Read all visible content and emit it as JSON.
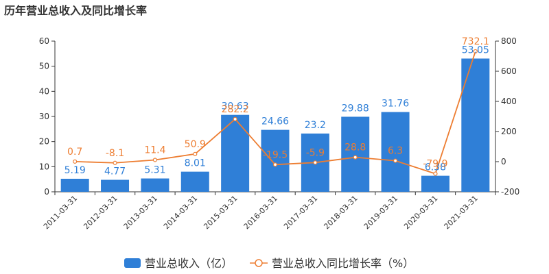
{
  "title": "历年营业总收入及同比增长率",
  "colors": {
    "bar": "#2f7fd7",
    "line": "#ed7d31",
    "axis": "#333333"
  },
  "chart_data": {
    "type": "bar",
    "categories": [
      "2011-03-31",
      "2012-03-31",
      "2013-03-31",
      "2014-03-31",
      "2015-03-31",
      "2016-03-31",
      "2017-03-31",
      "2018-03-31",
      "2019-03-31",
      "2020-03-31",
      "2021-03-31"
    ],
    "series": [
      {
        "name": "营业总收入（亿）",
        "type": "bar",
        "axis": "left",
        "values": [
          5.19,
          4.77,
          5.31,
          8.01,
          30.63,
          24.66,
          23.2,
          29.88,
          31.76,
          6.38,
          53.05
        ],
        "labels": [
          "5.19",
          "4.77",
          "5.31",
          "8.01",
          "30.63",
          "24.66",
          "23.2",
          "29.88",
          "31.76",
          "6.38",
          "53.05"
        ]
      },
      {
        "name": "营业总收入同比增长率（%）",
        "type": "line",
        "axis": "right",
        "values": [
          0.7,
          -8.1,
          11.4,
          50.9,
          282.2,
          -19.5,
          -5.9,
          28.8,
          6.3,
          -79.9,
          732.1
        ],
        "labels": [
          "0.7",
          "-8.1",
          "11.4",
          "50.9",
          "282.2",
          "-19.5",
          "-5.9",
          "28.8",
          "6.3",
          "-79.9",
          "732.1"
        ]
      }
    ],
    "y_left": {
      "lim": [
        0,
        60
      ],
      "ticks": [
        "0",
        "10",
        "20",
        "30",
        "40",
        "50",
        "60"
      ]
    },
    "y_right": {
      "lim": [
        -200,
        800
      ],
      "ticks": [
        "-200",
        "0",
        "200",
        "400",
        "600",
        "800"
      ]
    },
    "legend": "bottom-center"
  }
}
